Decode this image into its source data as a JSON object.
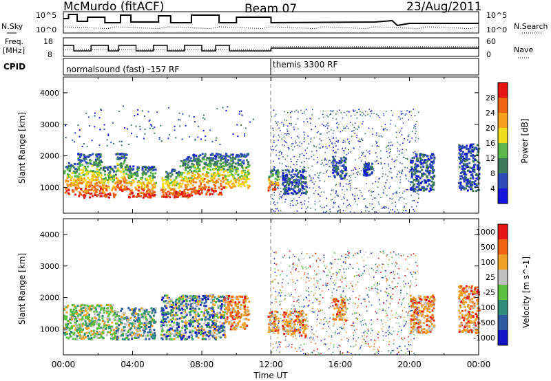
{
  "header": {
    "station": "McMurdo (fitACF)",
    "beam": "Beam 07",
    "date": "23/Aug/2011"
  },
  "noise_panel": {
    "left_label": "N.Sky",
    "right_label": "N.Search",
    "left_ticks": [
      "10^5",
      "10^0"
    ],
    "right_ticks": [
      "10^5",
      "10^0"
    ]
  },
  "freq_panel": {
    "left_label_1": "Freq.",
    "left_label_2": "[MHz]",
    "left_ticks": [
      "18",
      "8"
    ],
    "right_label": "Nave",
    "right_ticks": [
      "60",
      "0"
    ]
  },
  "cpid_panel": {
    "label": "CPID",
    "modes": [
      {
        "name": "normalsound (fast) -157 RF",
        "start_hour": 0,
        "end_hour": 12
      },
      {
        "name": "themis 3300 RF",
        "start_hour": 12,
        "end_hour": 24
      }
    ]
  },
  "chart_data": [
    {
      "type": "heatmap",
      "title": "Power",
      "ylabel": "Slant Range [km]",
      "ylim": [
        180,
        4500
      ],
      "yticks": [
        "1000",
        "2000",
        "3000",
        "4000"
      ],
      "colorbar_label": "Power [dB]",
      "colorbar_ticks": [
        "4",
        "8",
        "12",
        "16",
        "20",
        "24",
        "28"
      ],
      "colors": [
        "#1414dc",
        "#2e4cb8",
        "#3c7a5a",
        "#5cb84a",
        "#f0dc1e",
        "#f5a01e",
        "#f06414",
        "#e61414"
      ],
      "scatter_regions": [
        {
          "x": [
            0.0,
            0.8
          ],
          "y": [
            800,
            1800
          ],
          "level": "high"
        },
        {
          "x": [
            0.8,
            2.2
          ],
          "y": [
            700,
            2100
          ],
          "level": "high"
        },
        {
          "x": [
            2.2,
            3.0
          ],
          "y": [
            700,
            1700
          ],
          "level": "high"
        },
        {
          "x": [
            3.0,
            3.7
          ],
          "y": [
            900,
            2100
          ],
          "level": "high"
        },
        {
          "x": [
            3.7,
            5.3
          ],
          "y": [
            700,
            1700
          ],
          "level": "high"
        },
        {
          "x": [
            5.6,
            6.7
          ],
          "y": [
            700,
            1600
          ],
          "level": "high"
        },
        {
          "x": [
            6.7,
            7.4
          ],
          "y": [
            700,
            2000
          ],
          "level": "high"
        },
        {
          "x": [
            7.4,
            9.3
          ],
          "y": [
            800,
            2100
          ],
          "level": "high"
        },
        {
          "x": [
            9.3,
            10.7
          ],
          "y": [
            1000,
            2100
          ],
          "level": "medium"
        },
        {
          "x": [
            11.8,
            12.4
          ],
          "y": [
            900,
            1600
          ],
          "level": "high"
        },
        {
          "x": [
            12.6,
            14.0
          ],
          "y": [
            800,
            1600
          ],
          "level": "low"
        },
        {
          "x": [
            15.5,
            16.3
          ],
          "y": [
            1300,
            2000
          ],
          "level": "low"
        },
        {
          "x": [
            17.3,
            17.8
          ],
          "y": [
            1400,
            1800
          ],
          "level": "low"
        },
        {
          "x": [
            20.0,
            21.4
          ],
          "y": [
            900,
            2100
          ],
          "level": "low"
        },
        {
          "x": [
            22.8,
            24.0
          ],
          "y": [
            900,
            2400
          ],
          "level": "low"
        },
        {
          "x": [
            12.0,
            20.5
          ],
          "y": [
            200,
            3500
          ],
          "level": "noise"
        },
        {
          "x": [
            0.0,
            11.0
          ],
          "y": [
            2300,
            3600
          ],
          "level": "sparse"
        }
      ]
    },
    {
      "type": "heatmap",
      "title": "Velocity",
      "ylabel": "Slant Range [km]",
      "xlabel": "Time UT",
      "ylim": [
        180,
        4500
      ],
      "yticks": [
        "1000",
        "2000",
        "3000",
        "4000"
      ],
      "xticks": [
        "00:00",
        "04:00",
        "08:00",
        "12:00",
        "16:00",
        "20:00",
        "00:00"
      ],
      "xlim": [
        0,
        24
      ],
      "colorbar_label": "Velocity [m s^-1]",
      "colorbar_ticks": [
        "1000",
        "500",
        "100",
        "25",
        "-25",
        "-100",
        "-500",
        "-1000"
      ],
      "colors": [
        "#1414c8",
        "#2e5aa0",
        "#2e8c78",
        "#5cc040",
        "#c0c0c0",
        "#f0a028",
        "#f06414",
        "#e61414"
      ],
      "scatter_regions": [
        {
          "x": [
            0.0,
            3.0
          ],
          "y": [
            700,
            1800
          ],
          "level": "green"
        },
        {
          "x": [
            3.0,
            5.3
          ],
          "y": [
            700,
            1700
          ],
          "level": "mixed"
        },
        {
          "x": [
            5.6,
            9.3
          ],
          "y": [
            700,
            2100
          ],
          "level": "blue"
        },
        {
          "x": [
            9.3,
            10.7
          ],
          "y": [
            1000,
            2100
          ],
          "level": "orange"
        },
        {
          "x": [
            11.8,
            12.4
          ],
          "y": [
            900,
            1600
          ],
          "level": "orange"
        },
        {
          "x": [
            12.6,
            14.0
          ],
          "y": [
            800,
            1600
          ],
          "level": "orange"
        },
        {
          "x": [
            15.5,
            16.3
          ],
          "y": [
            1300,
            2000
          ],
          "level": "orange"
        },
        {
          "x": [
            20.0,
            21.4
          ],
          "y": [
            900,
            2100
          ],
          "level": "orange"
        },
        {
          "x": [
            22.8,
            24.0
          ],
          "y": [
            900,
            2400
          ],
          "level": "orange"
        },
        {
          "x": [
            12.0,
            20.5
          ],
          "y": [
            200,
            3500
          ],
          "level": "noise"
        }
      ]
    }
  ]
}
